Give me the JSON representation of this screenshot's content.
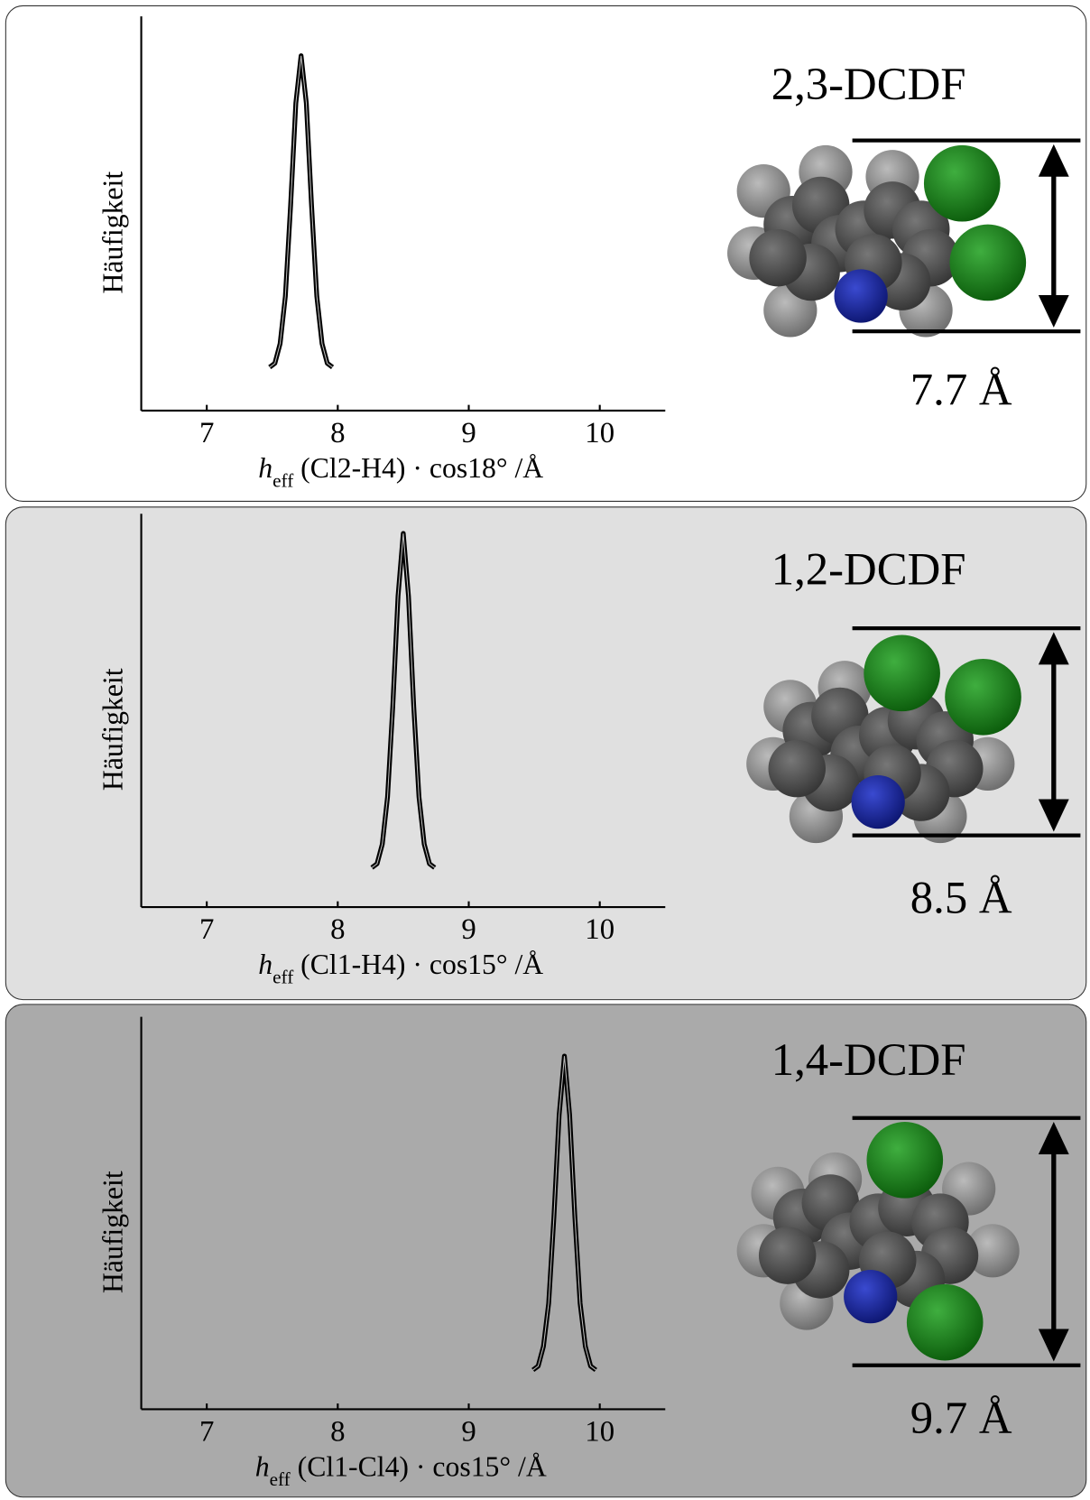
{
  "chart_data": [
    {
      "type": "line",
      "title": "2,3-DCDF",
      "annotation": "7.7 Å",
      "y_label": "Häufigkeit",
      "x_label": {
        "symbol": "h",
        "subscript": "eff",
        "text": " (Cl2-H4) · cos18° /Å"
      },
      "x": [
        7.48,
        7.52,
        7.56,
        7.6,
        7.64,
        7.68,
        7.72,
        7.76,
        7.8,
        7.84,
        7.88,
        7.92,
        7.96
      ],
      "values": [
        11,
        12,
        17,
        29,
        52,
        78,
        90,
        78,
        52,
        29,
        17,
        12,
        11
      ],
      "color": "#000000",
      "xlim": [
        6.5,
        10.5
      ],
      "ylim": [
        0,
        100
      ],
      "xticks": [
        7,
        8,
        9,
        10
      ],
      "background": "#ffffff"
    },
    {
      "type": "line",
      "title": "1,2-DCDF",
      "annotation": "8.5 Å",
      "y_label": "Häufigkeit",
      "x_label": {
        "symbol": "h",
        "subscript": "eff",
        "text": " (Cl1-H4) · cos15° /Å"
      },
      "x": [
        8.26,
        8.3,
        8.34,
        8.38,
        8.42,
        8.46,
        8.5,
        8.54,
        8.58,
        8.62,
        8.66,
        8.7,
        8.74
      ],
      "values": [
        10,
        11,
        16,
        28,
        51,
        79,
        95,
        79,
        51,
        28,
        16,
        11,
        10
      ],
      "color": "#000000",
      "xlim": [
        6.5,
        10.5
      ],
      "ylim": [
        0,
        100
      ],
      "xticks": [
        7,
        8,
        9,
        10
      ],
      "background": "#e0e0e0"
    },
    {
      "type": "line",
      "title": "1,4-DCDF",
      "annotation": "9.7 Å",
      "y_label": "Häufigkeit",
      "x_label": {
        "symbol": "h",
        "subscript": "eff",
        "text": " (Cl1-Cl4) · cos15° /Å"
      },
      "x": [
        9.49,
        9.53,
        9.57,
        9.61,
        9.65,
        9.69,
        9.73,
        9.77,
        9.81,
        9.85,
        9.89,
        9.93,
        9.97
      ],
      "values": [
        10,
        11,
        16,
        27,
        49,
        75,
        90,
        75,
        49,
        27,
        16,
        11,
        10
      ],
      "color": "#000000",
      "xlim": [
        6.5,
        10.5
      ],
      "ylim": [
        0,
        100
      ],
      "xticks": [
        7,
        8,
        9,
        10
      ],
      "background": "#aaaaaa"
    }
  ]
}
